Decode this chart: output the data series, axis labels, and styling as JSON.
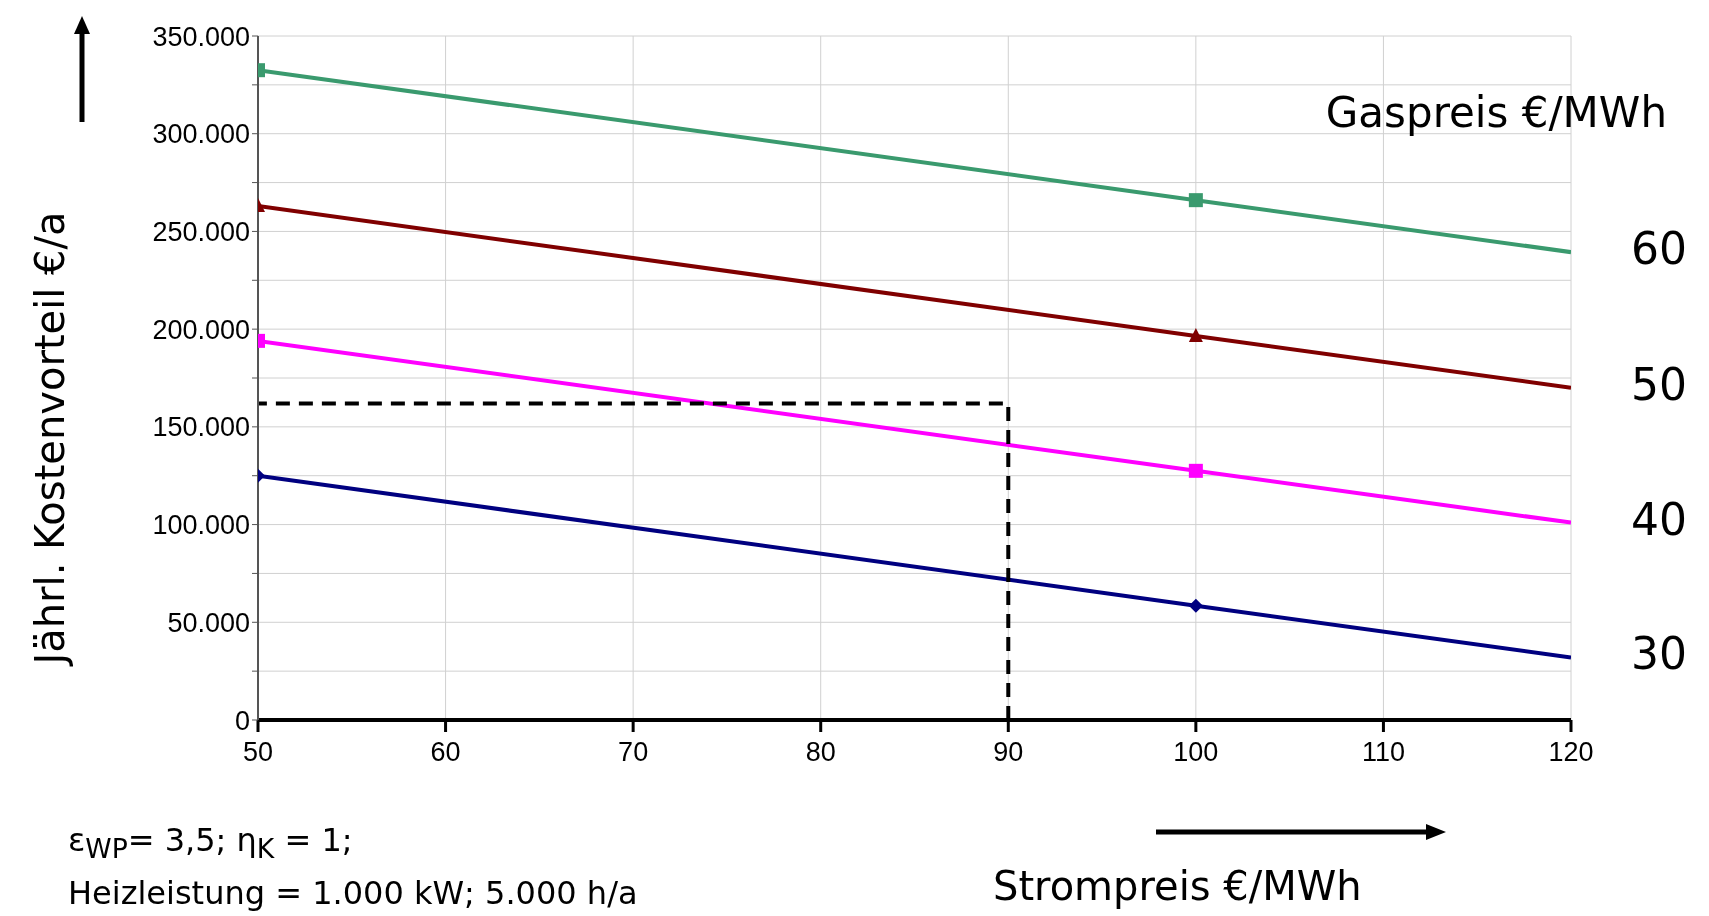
{
  "chart_data": {
    "type": "line",
    "ylabel": "Jährl. Kostenvorteil €/a",
    "xlabel": "Strompreis €/MWh",
    "legend_title": "Gaspreis €/MWh",
    "annotations": [
      "ε$_{WP}$= 3,5; η$_{K}$ = 1;",
      "Heizleistung = 1.000 kW; 5.000 h/a"
    ],
    "xlim": [
      50,
      120
    ],
    "xticks": [
      50,
      60,
      70,
      80,
      90,
      100,
      110,
      120
    ],
    "ylim": [
      0,
      350000
    ],
    "yticks": [
      {
        "value": 0,
        "label": "0"
      },
      {
        "value": 25000,
        "label": null
      },
      {
        "value": 50000,
        "label": "50.000"
      },
      {
        "value": 75000,
        "label": null
      },
      {
        "value": 100000,
        "label": "100.000"
      },
      {
        "value": 125000,
        "label": null
      },
      {
        "value": 150000,
        "label": "150.000"
      },
      {
        "value": 175000,
        "label": null
      },
      {
        "value": 200000,
        "label": "200.000"
      },
      {
        "value": 225000,
        "label": null
      },
      {
        "value": 250000,
        "label": "250.000"
      },
      {
        "value": 275000,
        "label": null
      },
      {
        "value": 300000,
        "label": "300.000"
      },
      {
        "value": 325000,
        "label": null
      },
      {
        "value": 350000,
        "label": "350.000"
      }
    ],
    "grid": true,
    "series": [
      {
        "name": "60",
        "color": "#3a9a6e",
        "marker": "square",
        "x": [
          50,
          100,
          120
        ],
        "values": [
          332500,
          266000,
          239400
        ]
      },
      {
        "name": "50",
        "color": "#800000",
        "marker": "triangle",
        "x": [
          50,
          100,
          120
        ],
        "values": [
          263000,
          196500,
          170000
        ]
      },
      {
        "name": "40",
        "color": "#ff00ff",
        "marker": "square",
        "x": [
          50,
          100,
          120
        ],
        "values": [
          194000,
          127500,
          101000
        ]
      },
      {
        "name": "30",
        "color": "#000080",
        "marker": "diamond",
        "x": [
          50,
          100,
          120
        ],
        "values": [
          125000,
          58500,
          32000
        ]
      },
      {
        "color": "#000000",
        "marker": "none",
        "line_style": "dashed",
        "x": [
          90,
          90,
          50
        ],
        "values": [
          0,
          162000,
          162000
        ]
      }
    ]
  }
}
